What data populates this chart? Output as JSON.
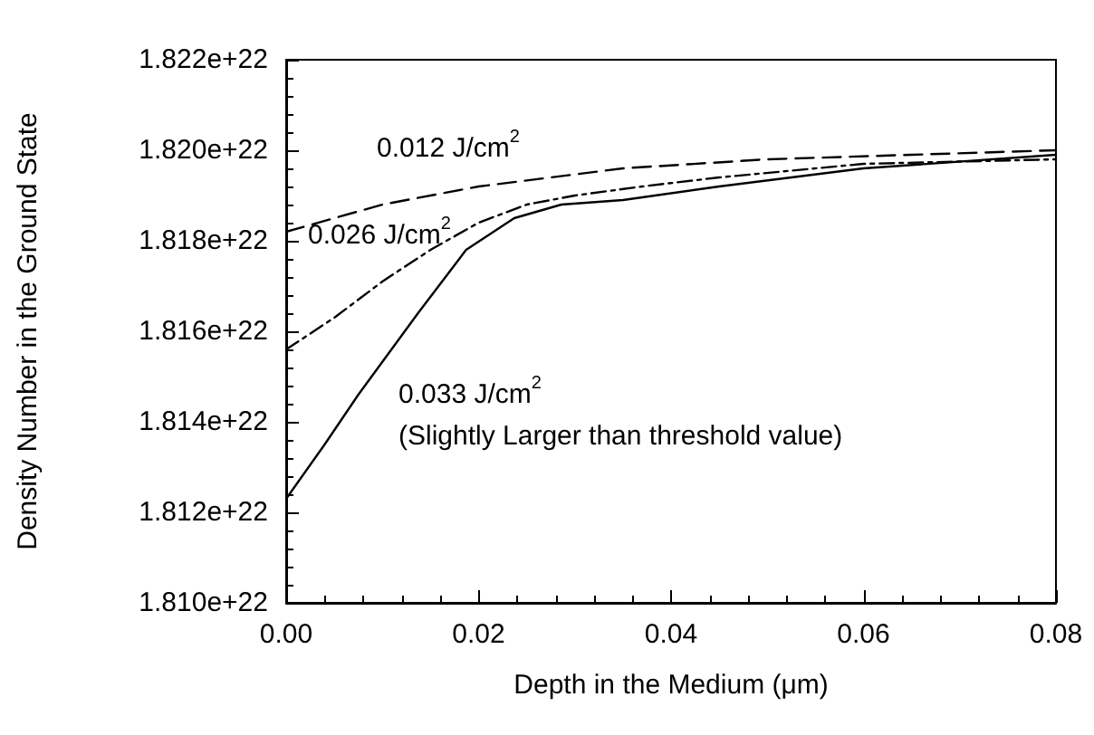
{
  "chart_data": {
    "type": "line",
    "xlabel": "Depth in the Medium (μm)",
    "ylabel": "Density Number in the Ground State",
    "xlim": [
      0,
      0.08
    ],
    "xticks": [
      {
        "value": 0,
        "label": "0.00"
      },
      0.02,
      0.04,
      0.06,
      {
        "value": 0.08,
        "label": "0.08"
      }
    ],
    "ylim": [
      1.81e+22,
      1.822e+22
    ],
    "yticks": [
      {
        "value": 1.81e+22,
        "label": "1.810e+22"
      },
      {
        "value": 1.812e+22,
        "label": "1.812e+22"
      },
      {
        "value": 1.814e+22,
        "label": "1.814e+22"
      },
      {
        "value": 1.816e+22,
        "label": "1.816e+22"
      },
      {
        "value": 1.818e+22,
        "label": "1.818e+22"
      },
      {
        "value": 1.82e+22,
        "label": "1.820e+22"
      },
      {
        "value": 1.822e+22,
        "label": "1.822e+22"
      }
    ],
    "grid": false,
    "marker": "none",
    "series": [
      {
        "color": "#000000",
        "line_style": "dashed",
        "x": [
          0,
          0.01,
          0.02,
          0.035,
          0.05,
          0.065,
          0.08
        ],
        "values": [
          1.8182e+22,
          1.8188e+22,
          1.8192e+22,
          1.8196e+22,
          1.8198e+22,
          1.8199e+22,
          1.82e+22
        ]
      },
      {
        "color": "#000000",
        "line_style": "dashdot",
        "x": [
          0,
          0.005,
          0.01,
          0.015,
          0.02,
          0.025,
          0.03,
          0.037,
          0.045,
          0.06,
          0.08
        ],
        "values": [
          1.8156e+22,
          1.8163e+22,
          1.8171e+22,
          1.8178e+22,
          1.8184e+22,
          1.8188e+22,
          1.819e+22,
          1.8192e+22,
          1.8194e+22,
          1.8197e+22,
          1.8198e+22
        ]
      },
      {
        "color": "#000000",
        "line_style": "solid",
        "x": [
          0,
          0.004,
          0.0075,
          0.0137,
          0.0187,
          0.0237,
          0.0286,
          0.035,
          0.045,
          0.06,
          0.08
        ],
        "values": [
          1.8123e+22,
          1.8135e+22,
          1.8146e+22,
          1.8164e+22,
          1.8178e+22,
          1.8185e+22,
          1.8188e+22,
          1.8189e+22,
          1.8192e+22,
          1.8196e+22,
          1.8199e+22
        ]
      }
    ],
    "annotations": [
      "0.012 J/cm$^{2}$",
      "0.026 J/cm$^{2}$",
      "0.033 J/cm$^{2}$",
      "(Slightly Larger than threshold value)"
    ]
  }
}
